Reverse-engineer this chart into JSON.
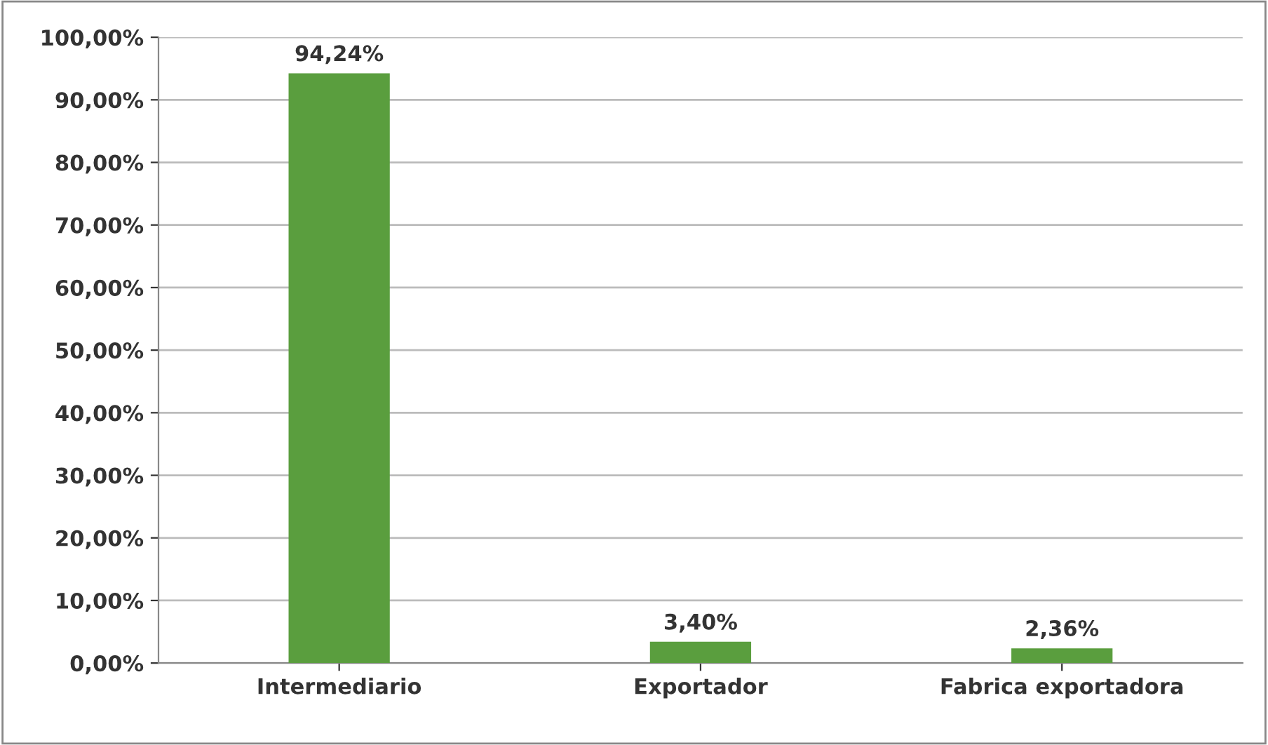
{
  "chart_data": {
    "type": "bar",
    "categories": [
      "Intermediario",
      "Exportador",
      "Fabrica exportadora"
    ],
    "values": [
      94.24,
      3.4,
      2.36
    ],
    "value_labels": [
      "94,24%",
      "3,40%",
      "2,36%"
    ],
    "color": "#5a9e3e",
    "ylim": [
      0,
      100
    ],
    "yticks": [
      {
        "value": 0,
        "label": "0,00%"
      },
      {
        "value": 10,
        "label": "10,00%"
      },
      {
        "value": 20,
        "label": "20,00%"
      },
      {
        "value": 30,
        "label": "30,00%"
      },
      {
        "value": 40,
        "label": "40,00%"
      },
      {
        "value": 50,
        "label": "50,00%"
      },
      {
        "value": 60,
        "label": "60,00%"
      },
      {
        "value": 70,
        "label": "70,00%"
      },
      {
        "value": 80,
        "label": "80,00%"
      },
      {
        "value": 90,
        "label": "90,00%"
      },
      {
        "value": 100,
        "label": "100,00%"
      }
    ],
    "grid": "y",
    "legend": false
  }
}
